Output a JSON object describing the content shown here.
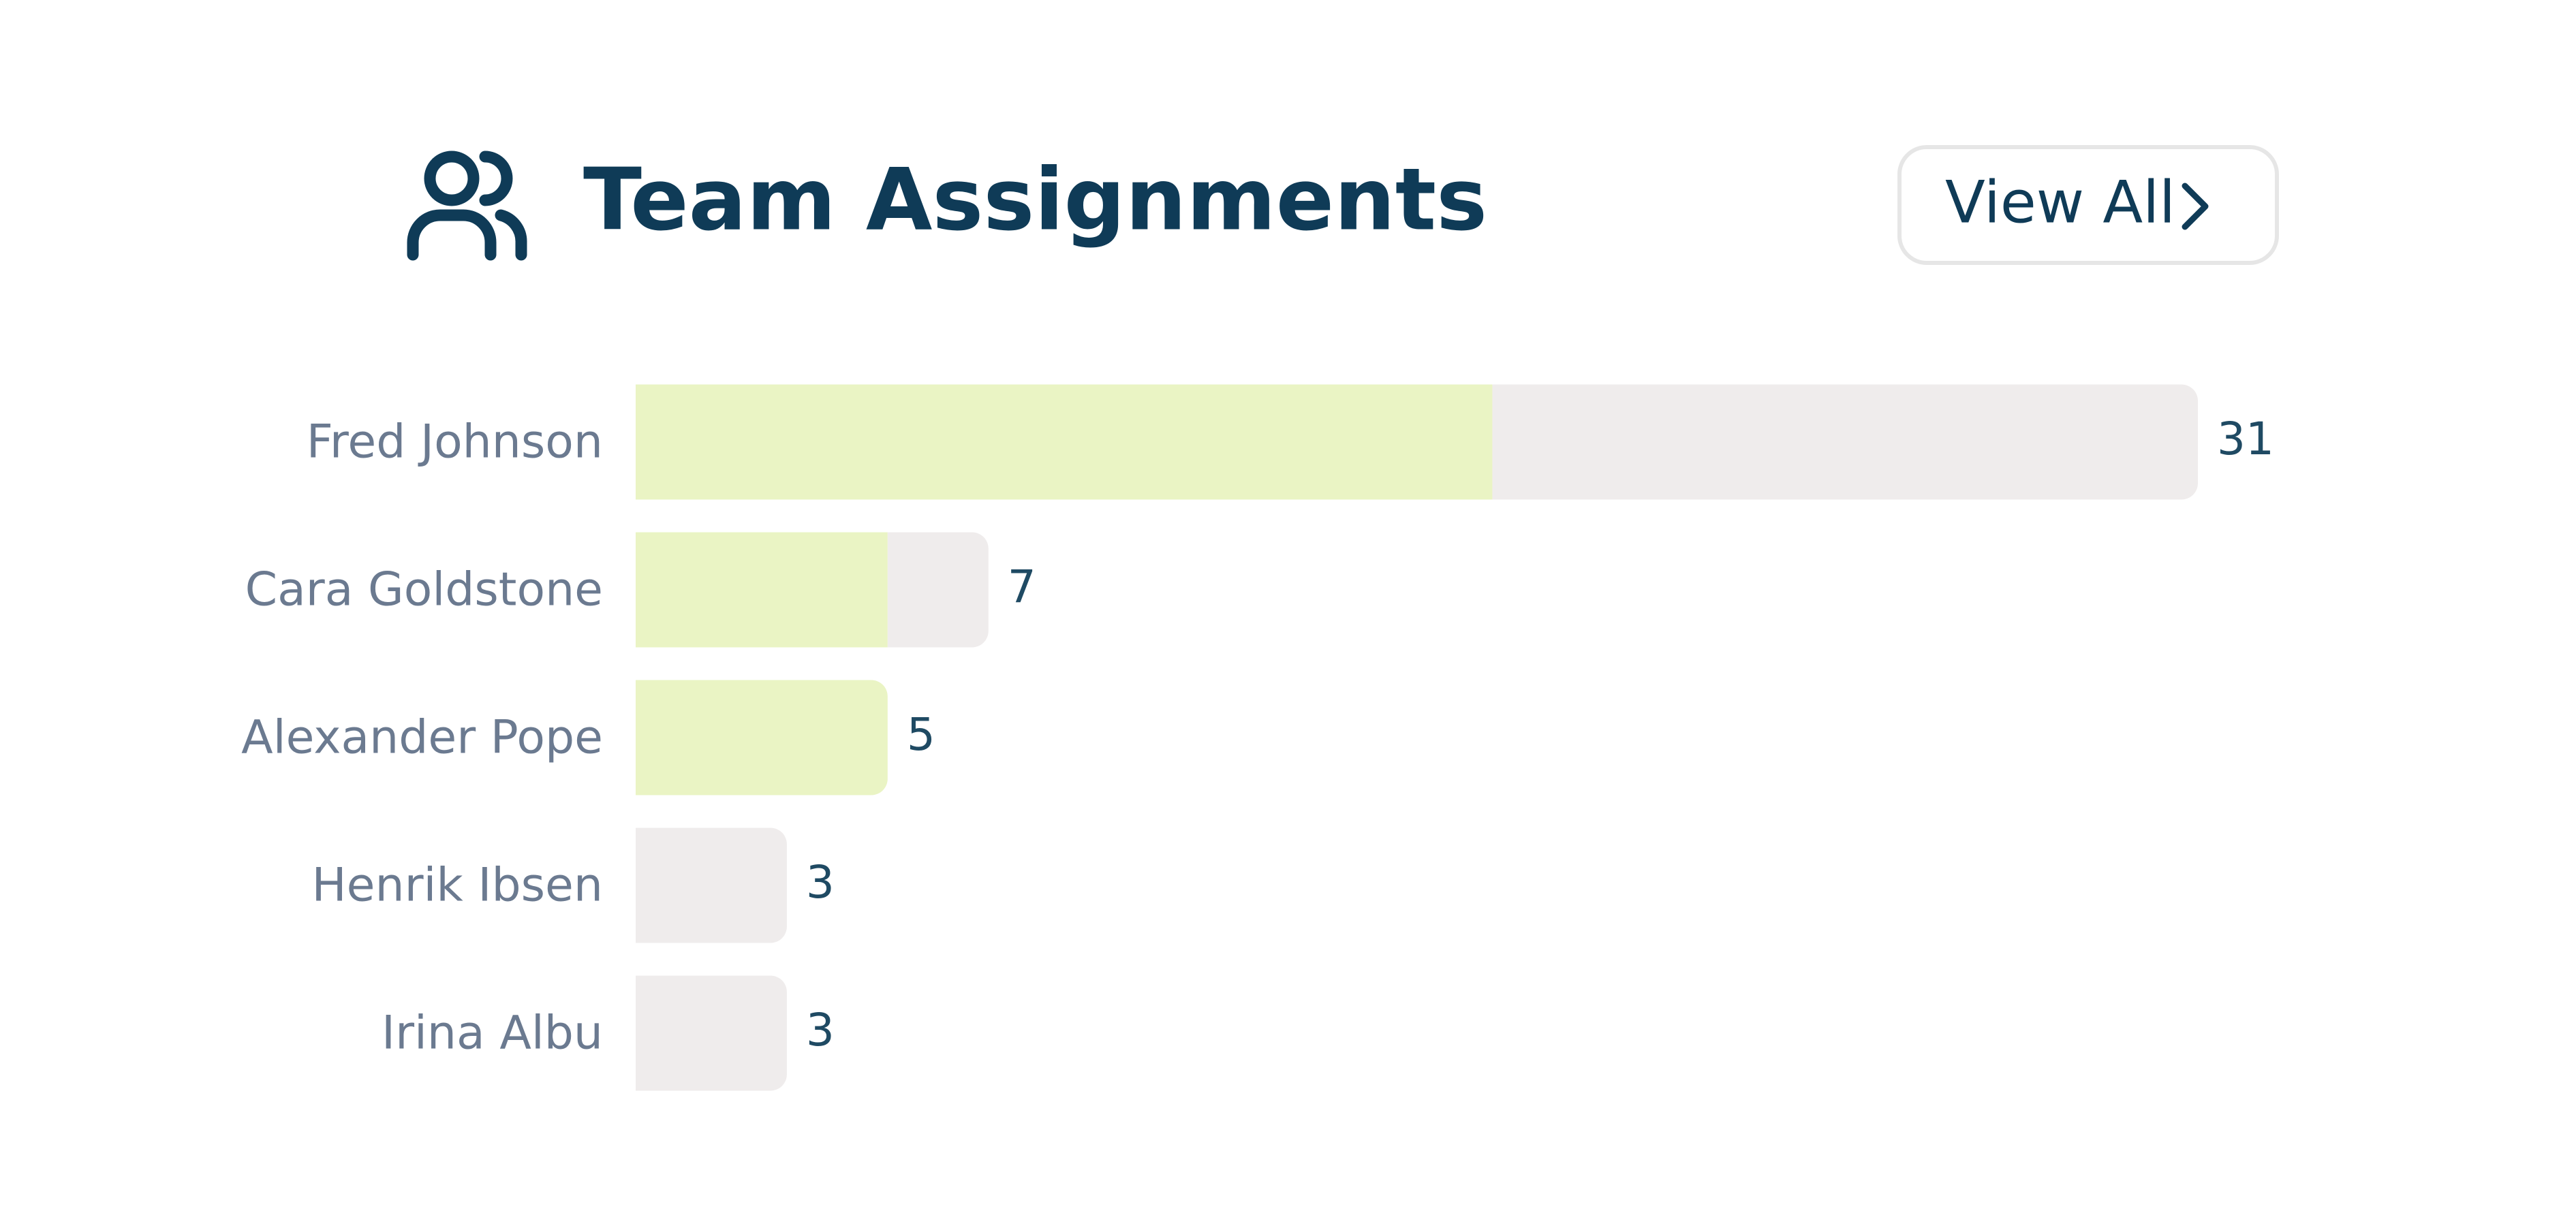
{
  "header": {
    "title": "Team Assignments",
    "button": "View All"
  },
  "chart_data": {
    "type": "stacked-barh",
    "categories": [
      "Fred Johnson",
      "Cara Goldstone",
      "Alexander Pope",
      "Henrik Ibsen",
      "Irina Albu"
    ],
    "series": [
      {
        "color": "#eaf4c4",
        "values": [
          17,
          5,
          5,
          0,
          0
        ]
      },
      {
        "color": "#efecec",
        "values": [
          14,
          2,
          0,
          3,
          3
        ]
      }
    ],
    "totals": [
      31,
      7,
      5,
      3,
      3
    ]
  }
}
